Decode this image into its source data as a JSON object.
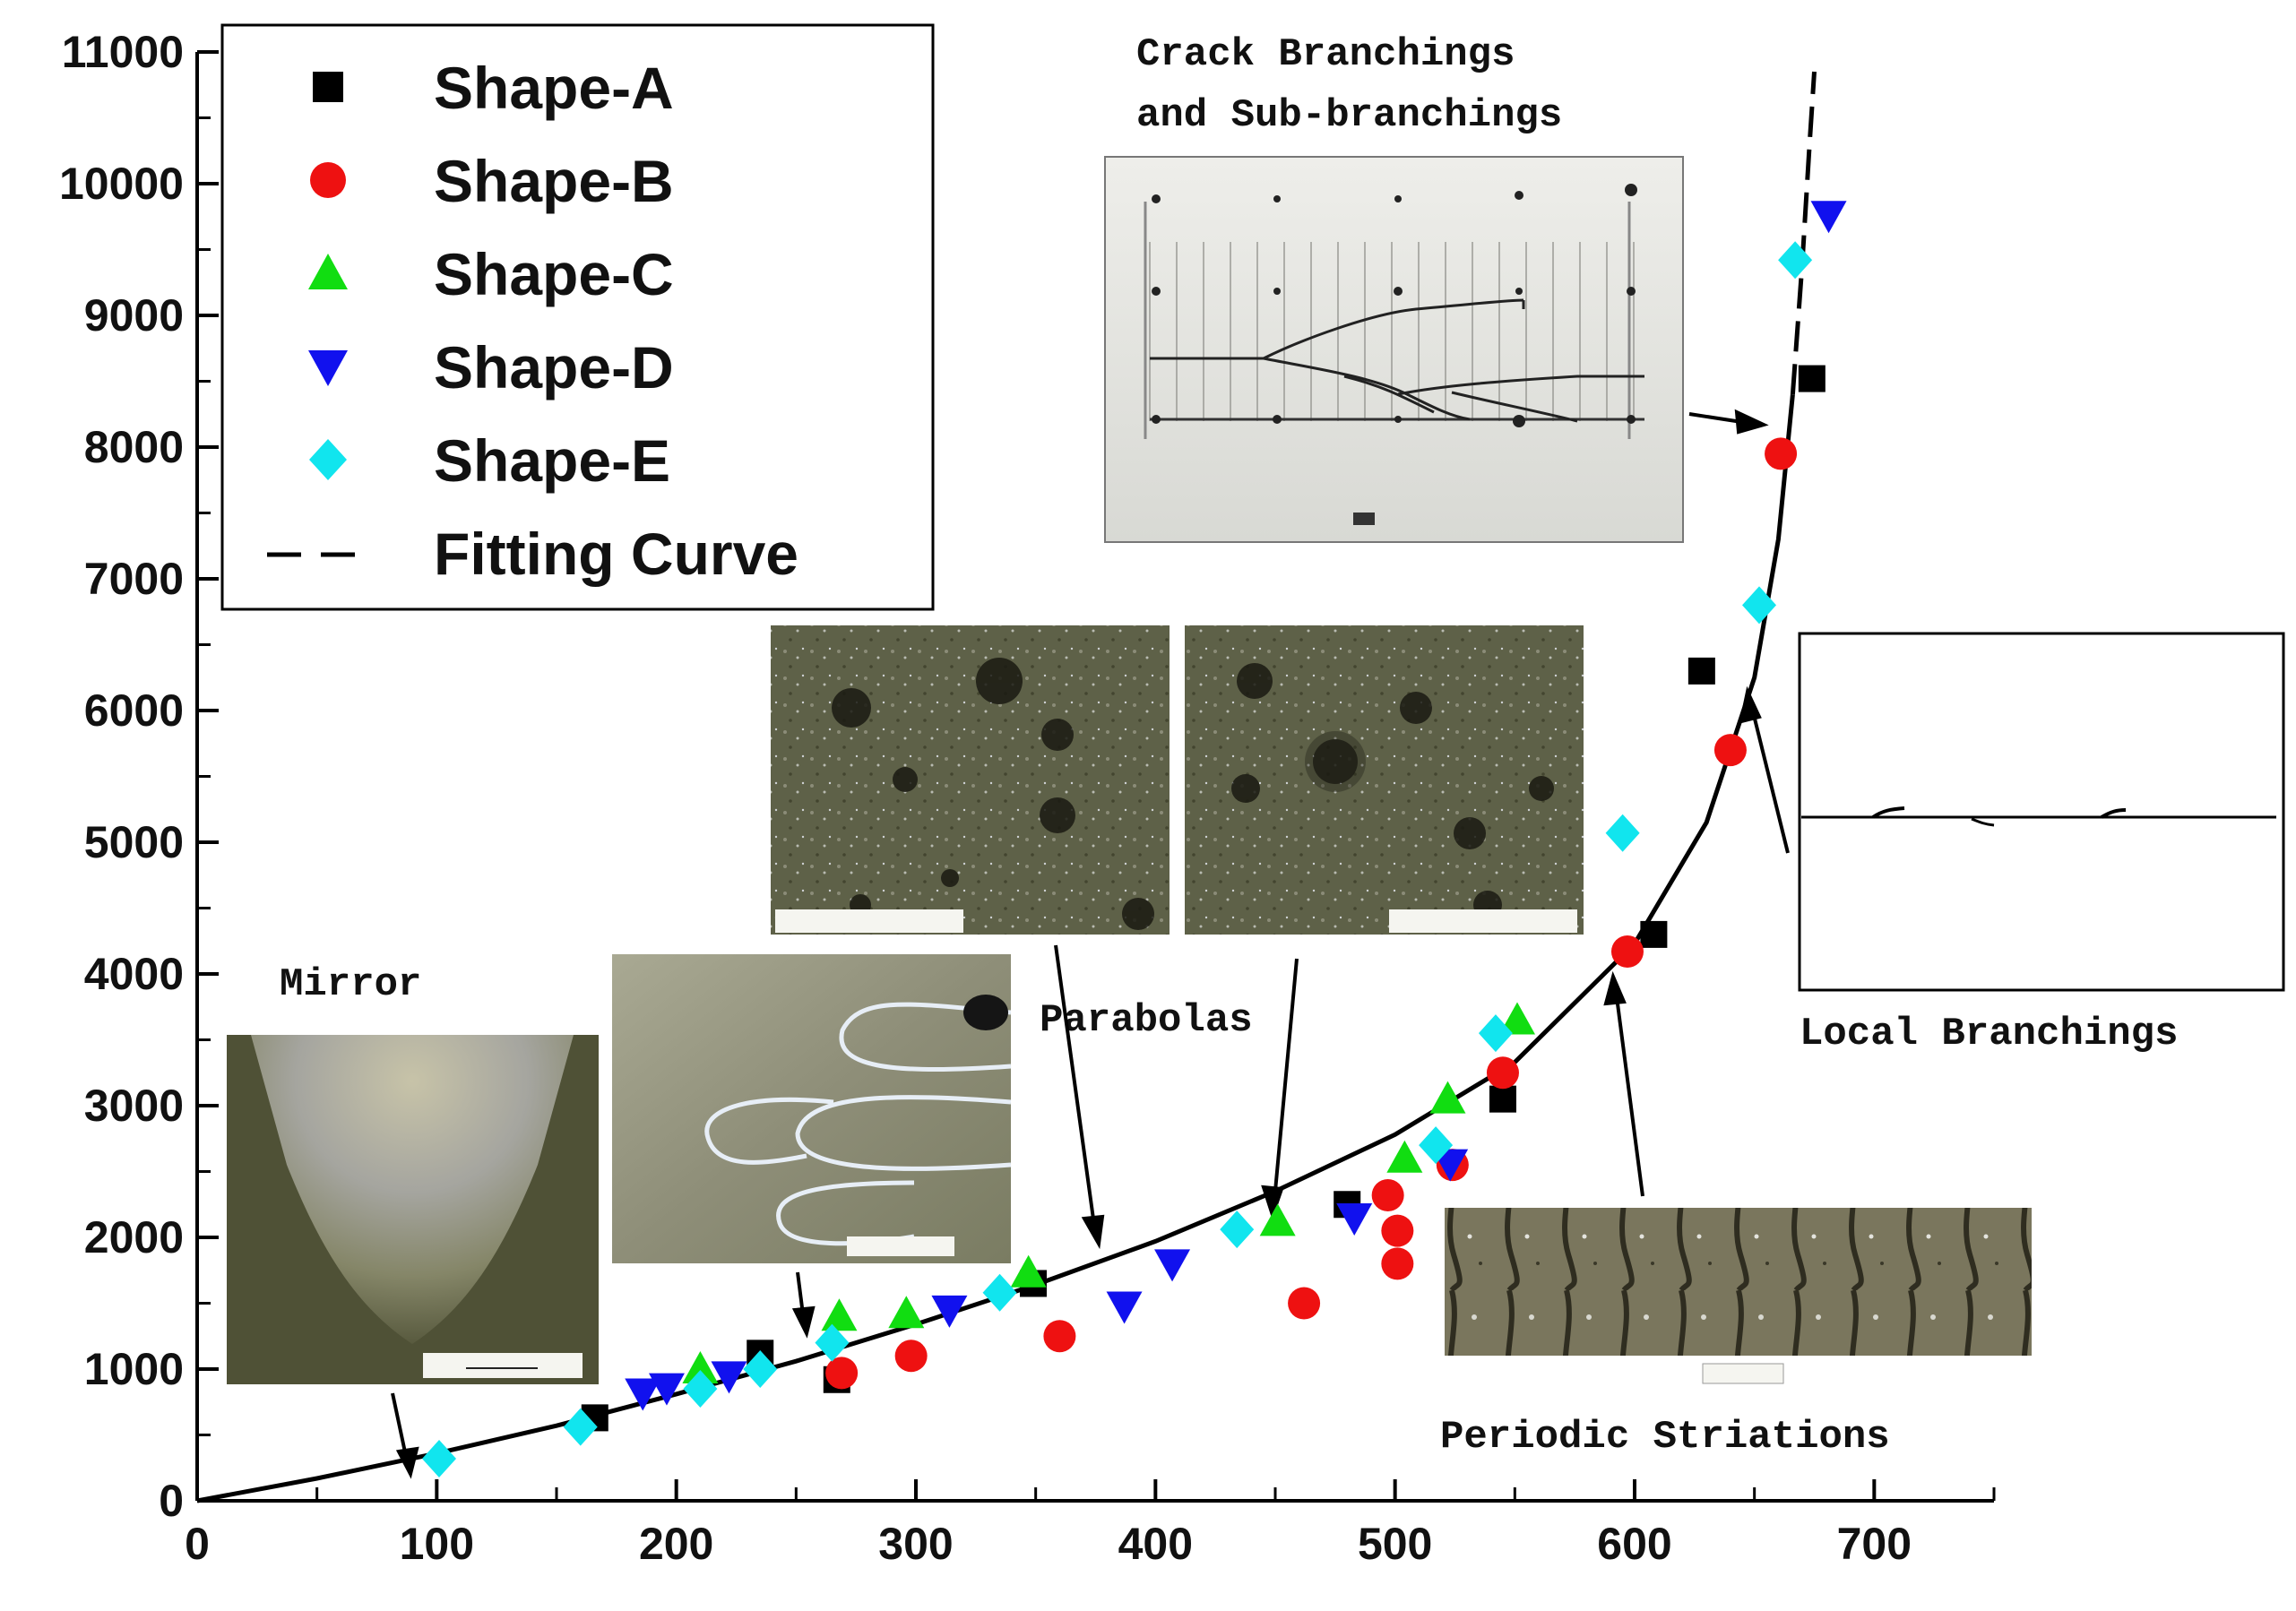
{
  "chart_data": {
    "type": "scatter",
    "title": "",
    "xlabel": "",
    "ylabel": "",
    "xlim": [
      0,
      750
    ],
    "ylim": [
      0,
      11000
    ],
    "x_ticks": [
      0,
      100,
      200,
      300,
      400,
      500,
      600,
      700
    ],
    "y_ticks": [
      0,
      1000,
      2000,
      3000,
      4000,
      5000,
      6000,
      7000,
      8000,
      9000,
      10000,
      11000
    ],
    "grid": false,
    "legend_position": "top-left",
    "series": [
      {
        "name": "Shape-A",
        "marker": "square",
        "color": "#000000",
        "points": [
          [
            166,
            630
          ],
          [
            235,
            1120
          ],
          [
            267,
            920
          ],
          [
            349,
            1650
          ],
          [
            480,
            2250
          ],
          [
            545,
            3050
          ],
          [
            608,
            4300
          ],
          [
            628,
            6300
          ],
          [
            674,
            8520
          ]
        ]
      },
      {
        "name": "Shape-B",
        "marker": "circle",
        "color": "#ee1111",
        "points": [
          [
            269,
            970
          ],
          [
            298,
            1100
          ],
          [
            360,
            1250
          ],
          [
            462,
            1500
          ],
          [
            497,
            2320
          ],
          [
            501,
            2050
          ],
          [
            501,
            1800
          ],
          [
            524,
            2550
          ],
          [
            545,
            3250
          ],
          [
            597,
            4170
          ],
          [
            640,
            5700
          ],
          [
            661,
            7950
          ]
        ]
      },
      {
        "name": "Shape-C",
        "marker": "triangle-up",
        "color": "#11dd11",
        "points": [
          [
            210,
            1000
          ],
          [
            268,
            1400
          ],
          [
            296,
            1420
          ],
          [
            347,
            1730
          ],
          [
            451,
            2120
          ],
          [
            504,
            2600
          ],
          [
            522,
            3050
          ],
          [
            551,
            3650
          ]
        ]
      },
      {
        "name": "Shape-D",
        "marker": "triangle-down",
        "color": "#1111ee",
        "points": [
          [
            186,
            820
          ],
          [
            196,
            860
          ],
          [
            222,
            950
          ],
          [
            314,
            1450
          ],
          [
            387,
            1480
          ],
          [
            407,
            1800
          ],
          [
            483,
            2150
          ],
          [
            523,
            2560
          ],
          [
            681,
            9760
          ]
        ]
      },
      {
        "name": "Shape-E",
        "marker": "diamond",
        "color": "#11e5ee",
        "points": [
          [
            101,
            320
          ],
          [
            160,
            560
          ],
          [
            210,
            850
          ],
          [
            235,
            1000
          ],
          [
            265,
            1200
          ],
          [
            335,
            1580
          ],
          [
            434,
            2060
          ],
          [
            517,
            2700
          ],
          [
            542,
            3550
          ],
          [
            595,
            5070
          ],
          [
            652,
            6800
          ],
          [
            667,
            9420
          ]
        ]
      },
      {
        "name": "Fitting Curve",
        "marker": "line",
        "color": "#000000",
        "points": [
          [
            0,
            0
          ],
          [
            50,
            170
          ],
          [
            100,
            360
          ],
          [
            150,
            570
          ],
          [
            200,
            810
          ],
          [
            250,
            1060
          ],
          [
            300,
            1340
          ],
          [
            350,
            1640
          ],
          [
            400,
            1970
          ],
          [
            450,
            2350
          ],
          [
            500,
            2780
          ],
          [
            550,
            3330
          ],
          [
            600,
            4230
          ],
          [
            630,
            5150
          ],
          [
            650,
            6250
          ],
          [
            660,
            7300
          ],
          [
            666,
            8400
          ],
          [
            670,
            9400
          ],
          [
            673,
            10300
          ],
          [
            675,
            10850
          ]
        ]
      }
    ]
  },
  "annotations": {
    "crack_branchings_line1": "Crack Branchings",
    "crack_branchings_line2": "and Sub-branchings",
    "mirror": "Mirror",
    "parabolas": "Parabolas",
    "local_branchings": "Local Branchings",
    "periodic_striations": "Periodic Striations"
  },
  "colors": {
    "axis": "#000000",
    "curve": "#000000",
    "photo_dark": "#4e5035",
    "photo_light": "#9aa09a"
  }
}
